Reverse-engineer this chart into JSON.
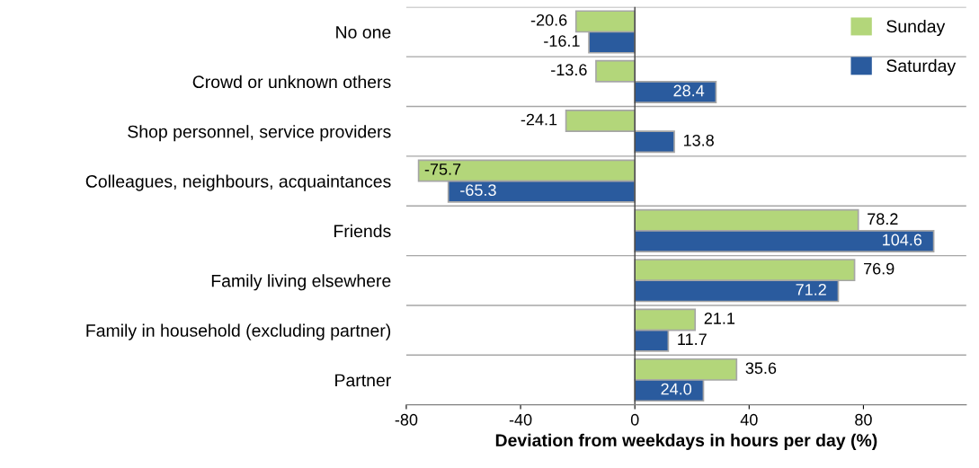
{
  "chart_data": {
    "type": "bar",
    "orientation": "horizontal",
    "xlabel": "Deviation from weekdays in hours per day (%)",
    "categories": [
      "No one",
      "Crowd or unknown others",
      "Shop personnel, service providers",
      "Colleagues, neighbours, acquaintances",
      "Friends",
      "Family living elsewhere",
      "Family in household (excluding partner)",
      "Partner"
    ],
    "series": [
      {
        "name": "Sunday",
        "color": "#b3d67a",
        "values": [
          -20.6,
          -13.6,
          -24.1,
          -75.7,
          78.2,
          76.9,
          21.1,
          35.6
        ],
        "value_labels": [
          "-20.6",
          "-13.6",
          "-24.1",
          "-75.7",
          "78.2",
          "76.9",
          "21.1",
          "35.6"
        ]
      },
      {
        "name": "Saturday",
        "color": "#2a5b9e",
        "values": [
          -16.1,
          28.4,
          13.8,
          -65.3,
          104.6,
          71.2,
          11.7,
          24.0
        ],
        "value_labels": [
          "-16.1",
          "28.4",
          "13.8",
          "-65.3",
          "104.6",
          "71.2",
          "11.7",
          "24.0"
        ]
      }
    ],
    "xlim": [
      -80,
      116
    ],
    "xticks": [
      -80,
      -40,
      0,
      40,
      80
    ],
    "grid": "y",
    "legend": "top right"
  }
}
